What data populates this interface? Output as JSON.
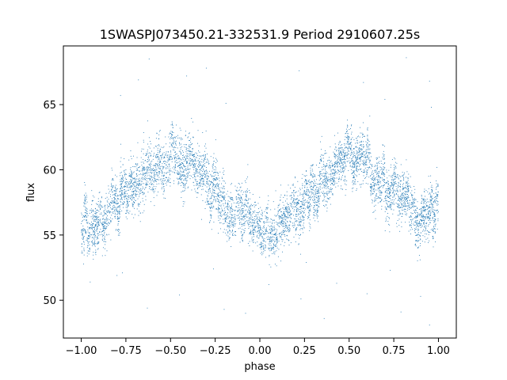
{
  "chart_data": {
    "type": "scatter",
    "title": "1SWASPJ073450.21-332531.9 Period 2910607.25s",
    "xlabel": "phase",
    "ylabel": "flux",
    "xlim": [
      -1.1,
      1.1
    ],
    "ylim": [
      47.1,
      69.5
    ],
    "x_ticks": [
      -1.0,
      -0.75,
      -0.5,
      -0.25,
      0.0,
      0.25,
      0.5,
      0.75,
      1.0
    ],
    "x_tick_labels": [
      "−1.00",
      "−0.75",
      "−0.50",
      "−0.25",
      "0.00",
      "0.25",
      "0.50",
      "0.75",
      "1.00"
    ],
    "y_ticks": [
      50,
      55,
      60,
      65
    ],
    "y_tick_labels": [
      "50",
      "55",
      "60",
      "65"
    ],
    "grid": false,
    "marker_color": "#1f77b4",
    "series": [
      {
        "curve": {
          "phase": [
            0.0,
            0.05,
            0.1,
            0.15,
            0.2,
            0.25,
            0.3,
            0.35,
            0.4,
            0.45,
            0.5,
            0.55,
            0.6,
            0.65,
            0.7,
            0.75,
            0.8,
            0.85,
            0.9,
            0.95,
            1.0
          ],
          "flux": [
            56.0,
            55.7,
            56.0,
            56.7,
            57.3,
            58.0,
            58.6,
            59.3,
            60.2,
            60.8,
            61.0,
            60.7,
            60.2,
            59.6,
            59.0,
            58.3,
            57.6,
            57.0,
            56.6,
            56.5,
            56.5
          ]
        },
        "mirror_period": 1.0,
        "scatter_sd": 1.3,
        "points_per_unit_phase": 3000,
        "outliers": [
          [
            -0.78,
            65.7
          ],
          [
            -0.68,
            66.9
          ],
          [
            -0.62,
            68.5
          ],
          [
            -0.41,
            67.2
          ],
          [
            -0.3,
            67.8
          ],
          [
            -0.19,
            65.1
          ],
          [
            0.22,
            67.6
          ],
          [
            0.58,
            66.7
          ],
          [
            0.7,
            65.4
          ],
          [
            0.82,
            68.6
          ],
          [
            0.95,
            66.8
          ],
          [
            0.96,
            64.8
          ],
          [
            -0.95,
            51.4
          ],
          [
            -0.8,
            51.9
          ],
          [
            -0.63,
            49.4
          ],
          [
            -0.45,
            50.4
          ],
          [
            -0.26,
            52.4
          ],
          [
            -0.08,
            49.0
          ],
          [
            0.05,
            51.2
          ],
          [
            0.23,
            50.1
          ],
          [
            0.36,
            48.6
          ],
          [
            0.6,
            50.5
          ],
          [
            0.73,
            52.3
          ],
          [
            0.79,
            49.1
          ],
          [
            0.95,
            48.1
          ],
          [
            -0.2,
            49.3
          ],
          [
            0.43,
            51.3
          ],
          [
            0.26,
            52.9
          ],
          [
            -0.77,
            52.1
          ],
          [
            0.9,
            50.3
          ]
        ]
      }
    ]
  }
}
